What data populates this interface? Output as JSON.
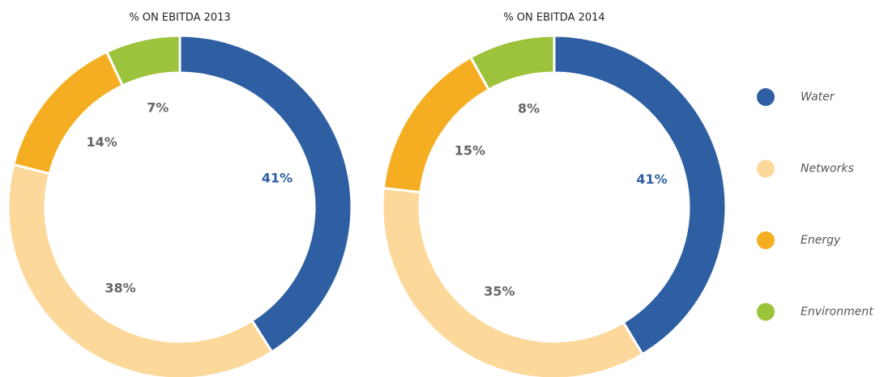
{
  "chart_data": [
    {
      "type": "donut",
      "title": "% ON EBITDA 2013",
      "categories": [
        "Water",
        "Networks",
        "Energy",
        "Environment"
      ],
      "values": [
        41,
        38,
        14,
        7
      ],
      "value_labels": [
        "41%",
        "38%",
        "14%",
        "7%"
      ],
      "colors": [
        "#2f5fa3",
        "#fcd89b",
        "#f5ae22",
        "#9dc23b"
      ]
    },
    {
      "type": "donut",
      "title": "% ON EBITDA 2014",
      "categories": [
        "Water",
        "Networks",
        "Energy",
        "Environment"
      ],
      "values": [
        41,
        35,
        15,
        8
      ],
      "value_labels": [
        "41%",
        "35%",
        "15%",
        "8%"
      ],
      "colors": [
        "#2f5fa3",
        "#fcd89b",
        "#f5ae22",
        "#9dc23b"
      ]
    }
  ]
}
